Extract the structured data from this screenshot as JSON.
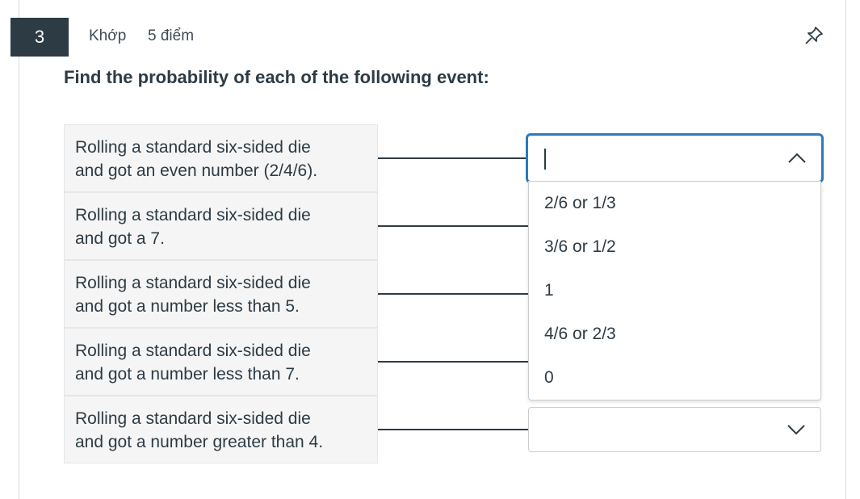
{
  "question": {
    "number": "3",
    "type": "Khớp",
    "points": "5 điểm",
    "prompt": "Find the probability of each of the following event:"
  },
  "rows": [
    {
      "line1": "Rolling a standard six-sided die",
      "line2": "and got an even number (2/4/6)."
    },
    {
      "line1": "Rolling a standard six-sided die",
      "line2": "and got a 7."
    },
    {
      "line1": "Rolling a standard six-sided die",
      "line2": "and got a number less than 5."
    },
    {
      "line1": "Rolling a standard six-sided die",
      "line2": "and got a number less than 7."
    },
    {
      "line1": "Rolling a standard six-sided die",
      "line2": "and got a number greater than 4."
    }
  ],
  "dropdown": {
    "options": [
      "2/6 or 1/3",
      "3/6 or 1/2",
      "1",
      "4/6 or 2/3",
      "0"
    ]
  },
  "colors": {
    "accent": "#2b7abc",
    "dark": "#2d3b45",
    "row_bg": "#f5f5f5"
  },
  "icons": {
    "pin": "pin-icon",
    "chevron_up": "chevron-up-icon",
    "chevron_down": "chevron-down-icon"
  }
}
